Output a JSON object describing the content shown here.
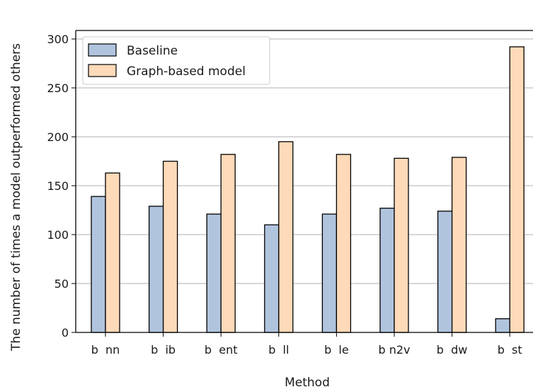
{
  "chart_data": {
    "type": "bar",
    "title": "",
    "xlabel": "Method",
    "ylabel": "The number of times a model outperformed others",
    "ylim": [
      0,
      305
    ],
    "yticks": [
      0,
      50,
      100,
      150,
      200,
      250,
      300
    ],
    "grid": "y",
    "legend_position": "top-left",
    "categories": [
      "b  nn",
      "b  ib",
      "b  ent",
      "b  ll",
      "b  le",
      "b n2v",
      "b  dw",
      "b  st"
    ],
    "series": [
      {
        "name": "Baseline",
        "color": "#b0c4de",
        "values": [
          139,
          129,
          121,
          110,
          121,
          127,
          124,
          14
        ]
      },
      {
        "name": "Graph-based model",
        "color": "#ffdab9",
        "values": [
          163,
          175,
          182,
          195,
          182,
          178,
          179,
          292
        ]
      }
    ]
  }
}
